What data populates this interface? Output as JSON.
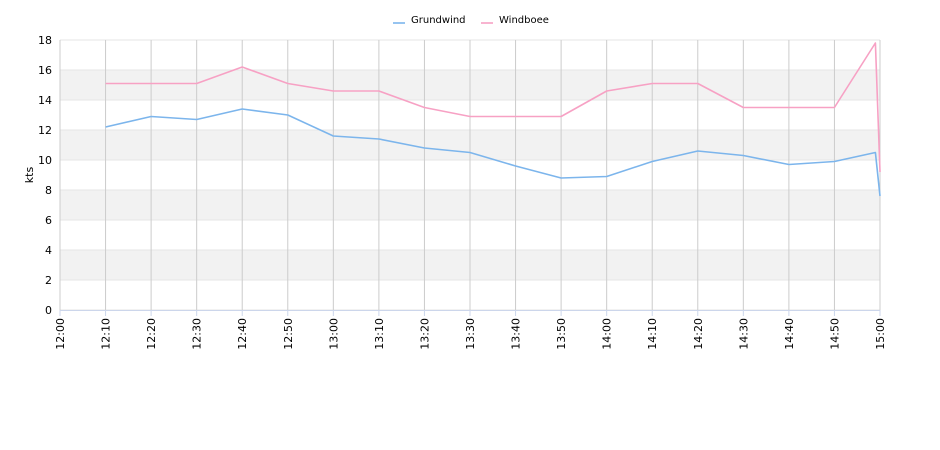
{
  "chart_data": {
    "type": "line",
    "title": "",
    "xlabel": "",
    "ylabel": "kts",
    "x_ticks": [
      "12:00",
      "12:10",
      "12:20",
      "12:30",
      "12:40",
      "12:50",
      "13:00",
      "13:10",
      "13:20",
      "13:30",
      "13:40",
      "13:50",
      "14:00",
      "14:10",
      "14:20",
      "14:30",
      "14:40",
      "14:50",
      "15:00"
    ],
    "y_ticks": [
      0,
      2,
      4,
      6,
      8,
      10,
      12,
      14,
      16,
      18
    ],
    "ylim": [
      0,
      18
    ],
    "xlim": [
      "12:00",
      "15:00"
    ],
    "grid": true,
    "legend_position": "top-center",
    "series": [
      {
        "name": "Grundwind",
        "color": "#7cb5ec",
        "x": [
          "12:10",
          "12:20",
          "12:30",
          "12:40",
          "12:50",
          "13:00",
          "13:10",
          "13:20",
          "13:30",
          "13:40",
          "13:50",
          "14:00",
          "14:10",
          "14:20",
          "14:30",
          "14:40",
          "14:50",
          "14:59",
          "15:00"
        ],
        "values": [
          12.2,
          12.9,
          12.7,
          13.4,
          13.0,
          11.6,
          11.4,
          10.8,
          10.5,
          9.6,
          8.8,
          8.9,
          9.9,
          10.6,
          10.3,
          9.7,
          9.9,
          10.5,
          7.6
        ]
      },
      {
        "name": "Windboee",
        "color": "#f7a1c4",
        "x": [
          "12:10",
          "12:20",
          "12:30",
          "12:40",
          "12:50",
          "13:00",
          "13:10",
          "13:20",
          "13:30",
          "13:40",
          "13:50",
          "14:00",
          "14:10",
          "14:20",
          "14:30",
          "14:40",
          "14:50",
          "14:59",
          "15:00"
        ],
        "values": [
          15.1,
          15.1,
          15.1,
          16.2,
          15.1,
          14.6,
          14.6,
          13.5,
          12.9,
          12.9,
          12.9,
          14.6,
          15.1,
          15.1,
          13.5,
          13.5,
          13.5,
          17.8,
          9.2
        ]
      }
    ]
  }
}
